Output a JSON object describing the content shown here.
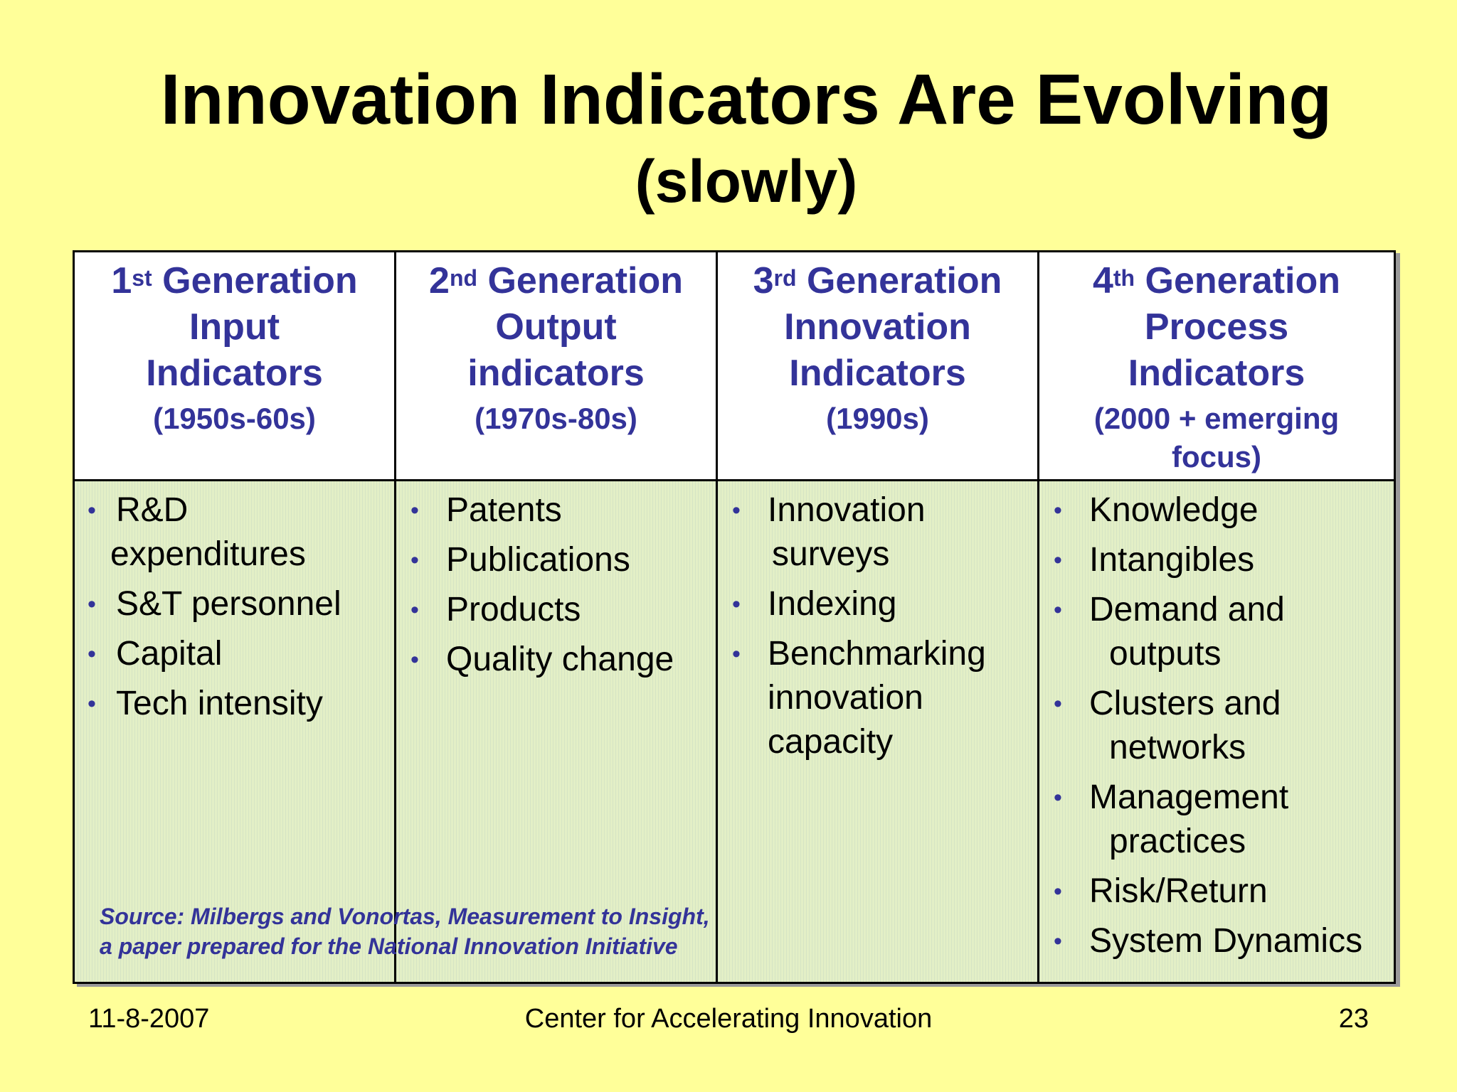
{
  "slide": {
    "title": "Innovation Indicators Are Evolving",
    "subtitle": "(slowly)"
  },
  "columns": [
    {
      "num": "1",
      "suffix": "st",
      "gen": "Generation",
      "line2": "Input",
      "line3": "Indicators",
      "period": "(1950s-60s)",
      "items": [
        "R&D",
        "expenditures",
        "S&T personnel",
        "Capital",
        "Tech intensity"
      ]
    },
    {
      "num": "2",
      "suffix": "nd",
      "gen": "Generation",
      "line2": "Output",
      "line3": "indicators",
      "period": "(1970s-80s)",
      "items": [
        "Patents",
        "Publications",
        "Products",
        "Quality change"
      ]
    },
    {
      "num": "3",
      "suffix": "rd",
      "gen": "Generation",
      "line2": "Innovation",
      "line3": "Indicators",
      "period": "(1990s)",
      "items": [
        "Innovation",
        "surveys",
        "Indexing",
        "Benchmarking",
        "innovation",
        "capacity"
      ]
    },
    {
      "num": "4",
      "suffix": "th",
      "gen": "Generation",
      "line2": "Process",
      "line3": "Indicators",
      "period": "(2000 + emerging",
      "period2": "focus)",
      "items": [
        "Knowledge",
        "Intangibles",
        "Demand and",
        "outputs",
        "Clusters and",
        "networks",
        "Management",
        "practices",
        "Risk/Return",
        "System Dynamics"
      ]
    }
  ],
  "source": {
    "line1": "Source: Milbergs and Vonortas, Measurement to Insight,",
    "line2": "a paper prepared for the National Innovation Initiative"
  },
  "footer": {
    "date": "11-8-2007",
    "org": "Center for Accelerating Innovation",
    "page": "23"
  },
  "colors": {
    "background": "#FFFF99",
    "heading_text": "#333399",
    "body_fill": "#E3EFC6"
  }
}
